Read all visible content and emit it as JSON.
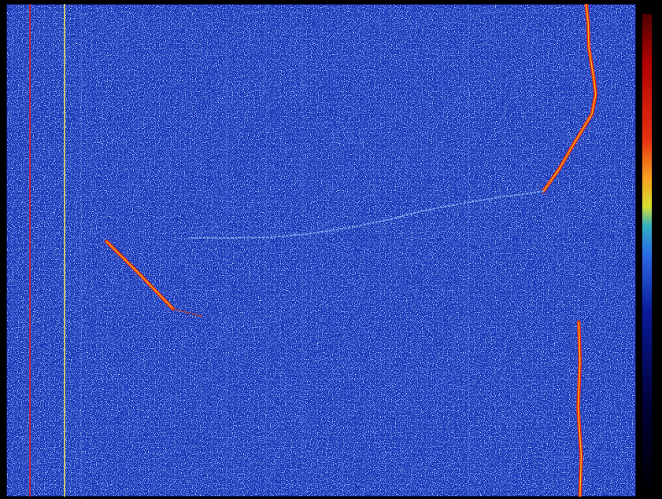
{
  "chart_data": {
    "type": "waterfall",
    "tick_labels": false,
    "grid": false,
    "xlim": [
      0,
      100
    ],
    "ylim": [
      0,
      100
    ],
    "series": [
      {
        "color": "#d81e2a",
        "line_style": "solid",
        "x": [
          3.75,
          3.75
        ],
        "values": [
          0,
          100
        ]
      },
      {
        "color": "#e8e060",
        "line_style": "solid",
        "x": [
          9.25,
          9.25
        ],
        "values": [
          0,
          100
        ]
      },
      {
        "color": "#5d8fe0",
        "line_style": "faint",
        "x": [
          11.9,
          11.9
        ],
        "values": [
          0,
          100
        ]
      },
      {
        "color": "#4a78d8",
        "line_style": "faint",
        "x": [
          34.9,
          34.9
        ],
        "values": [
          0,
          100
        ]
      },
      {
        "color": "#4a78d8",
        "line_style": "faint",
        "x": [
          41.3,
          41.3
        ],
        "values": [
          0,
          100
        ]
      },
      {
        "color": "#4a78d8",
        "line_style": "faint",
        "x": [
          47.1,
          47.1
        ],
        "values": [
          0,
          100
        ]
      },
      {
        "color": "#5d8fe0",
        "line_style": "faint",
        "x": [
          73.4,
          73.4
        ],
        "values": [
          0,
          100
        ]
      },
      {
        "color": "#e02a10",
        "line_style": "solid",
        "x": [
          92.1,
          92.4,
          92.5,
          93.3,
          93.6,
          93.0,
          91.5,
          89.6,
          87.8,
          85.3
        ],
        "values": [
          0,
          4.0,
          8.8,
          15.2,
          18.3,
          22.3,
          25.5,
          29.5,
          33.5,
          38.0
        ]
      },
      {
        "color": "#7fb0f0",
        "line_style": "dotted",
        "x": [
          85.3,
          79.0,
          72.8,
          66.5,
          60.3,
          54.0,
          47.8,
          41.5,
          34.0,
          29.0
        ],
        "values": [
          38.0,
          39.1,
          40.4,
          41.9,
          43.9,
          45.5,
          46.7,
          47.4,
          47.5,
          47.5
        ]
      },
      {
        "color": "#e02a10",
        "line_style": "solid",
        "x": [
          15.9,
          20.9,
          26.5
        ],
        "values": [
          48.2,
          54.5,
          61.9
        ]
      },
      {
        "color": "#c04020",
        "line_style": "dotted",
        "x": [
          26.5,
          31.3
        ],
        "values": [
          61.9,
          63.5
        ]
      },
      {
        "color": "#e02a10",
        "line_style": "solid",
        "x": [
          90.9,
          91.1,
          90.8,
          91.3,
          91.1
        ],
        "values": [
          64.6,
          72.6,
          82.1,
          91.7,
          100
        ]
      }
    ]
  }
}
